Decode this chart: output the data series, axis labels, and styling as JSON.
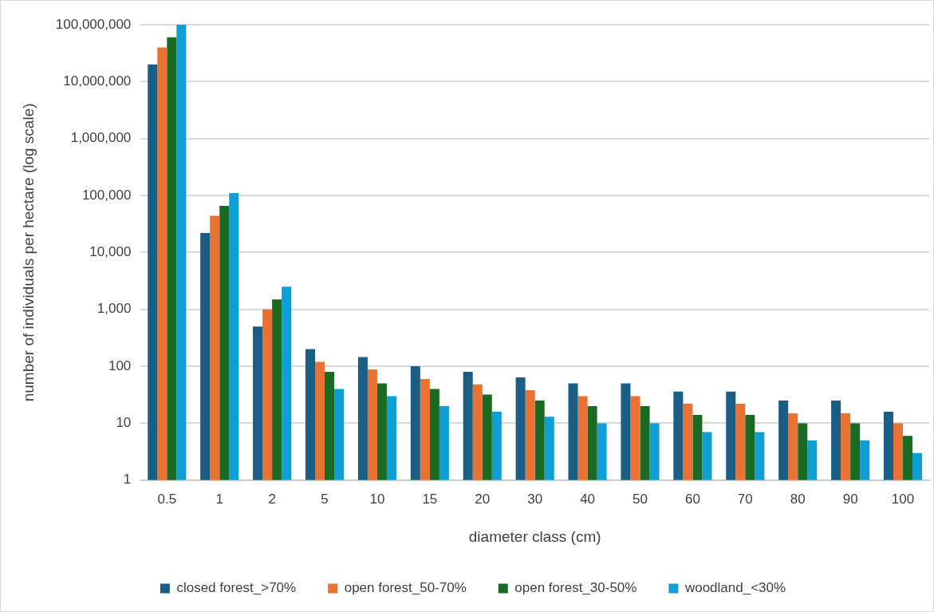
{
  "chart_data": {
    "type": "bar",
    "xlabel": "diameter class (cm)",
    "ylabel": "number of individuals per hectare (log scale)",
    "categories": [
      "0.5",
      "1",
      "2",
      "5",
      "10",
      "15",
      "20",
      "30",
      "40",
      "50",
      "60",
      "70",
      "80",
      "90",
      "100"
    ],
    "series": [
      {
        "name": "closed forest_>70%",
        "color": "#1a5e84",
        "values": [
          20000000,
          22000,
          500,
          200,
          145,
          100,
          80,
          64,
          50,
          50,
          36,
          36,
          25,
          25,
          16
        ]
      },
      {
        "name": "open forest_50-70%",
        "color": "#e97132",
        "values": [
          40000000,
          44000,
          1000,
          120,
          88,
          60,
          48,
          38,
          30,
          30,
          22,
          22,
          15,
          15,
          10
        ]
      },
      {
        "name": "open forest_30-50%",
        "color": "#196b24",
        "values": [
          60000000,
          66000,
          1500,
          80,
          50,
          40,
          32,
          25,
          20,
          20,
          14,
          14,
          10,
          10,
          6
        ]
      },
      {
        "name": "woodland_<30%",
        "color": "#0f9ed5",
        "values": [
          100000000,
          110000,
          2500,
          40,
          30,
          20,
          16,
          13,
          10,
          10,
          7,
          7,
          5,
          5,
          3
        ]
      }
    ],
    "log": true,
    "ylim": [
      1,
      100000000
    ],
    "yticks": [
      {
        "value": 1,
        "label": "1"
      },
      {
        "value": 10,
        "label": "10"
      },
      {
        "value": 100,
        "label": "100"
      },
      {
        "value": 1000,
        "label": "1,000"
      },
      {
        "value": 10000,
        "label": "10,000"
      },
      {
        "value": 100000,
        "label": "100,000"
      },
      {
        "value": 1000000,
        "label": "1,000,000"
      },
      {
        "value": 10000000,
        "label": "10,000,000"
      },
      {
        "value": 100000000,
        "label": "100,000,000"
      }
    ],
    "grid": "y",
    "legend": "bottom"
  }
}
